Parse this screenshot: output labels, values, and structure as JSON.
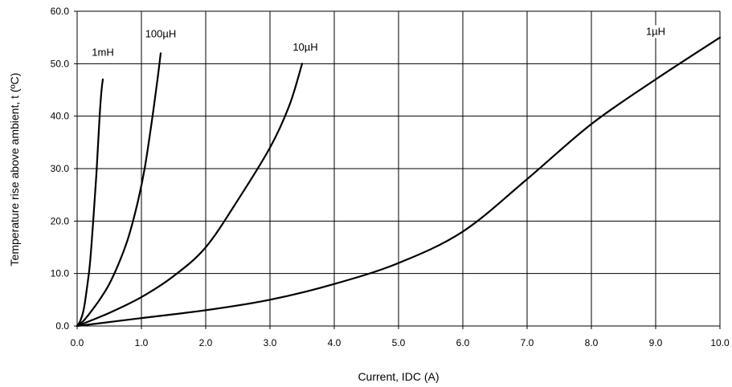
{
  "chart_data": {
    "type": "line",
    "title": "",
    "xlabel": "Current, IDC (A)",
    "ylabel": "Temperature rise above ambient, t (ºC)",
    "xlim": [
      0,
      10
    ],
    "ylim": [
      0,
      60
    ],
    "x_ticks": [
      "0.0",
      "1.0",
      "2.0",
      "3.0",
      "4.0",
      "5.0",
      "6.0",
      "7.0",
      "8.0",
      "9.0",
      "10.0"
    ],
    "y_ticks": [
      "0.0",
      "10.0",
      "20.0",
      "30.0",
      "40.0",
      "50.0",
      "60.0"
    ],
    "grid": true,
    "series": [
      {
        "name": "1mH",
        "x": [
          0.0,
          0.05,
          0.1,
          0.15,
          0.2,
          0.25,
          0.3,
          0.35,
          0.38,
          0.4
        ],
        "y": [
          0.0,
          1.0,
          3.0,
          7.0,
          12.0,
          20.0,
          29.0,
          40.0,
          45.0,
          47.0
        ]
      },
      {
        "name": "100µH",
        "x": [
          0.0,
          0.1,
          0.2,
          0.35,
          0.5,
          0.65,
          0.8,
          0.95,
          1.05,
          1.15,
          1.25,
          1.3
        ],
        "y": [
          0.0,
          1.0,
          2.5,
          5.0,
          8.0,
          12.0,
          17.0,
          24.0,
          30.0,
          38.0,
          47.0,
          52.0
        ]
      },
      {
        "name": "10µH",
        "x": [
          0.0,
          0.5,
          1.0,
          1.5,
          2.0,
          2.5,
          3.0,
          3.3,
          3.5
        ],
        "y": [
          0.0,
          2.5,
          5.5,
          9.5,
          15.0,
          24.0,
          34.0,
          42.0,
          50.0
        ]
      },
      {
        "name": "1µH",
        "x": [
          0.0,
          1.0,
          2.0,
          3.0,
          4.0,
          5.0,
          6.0,
          7.0,
          8.0,
          9.0,
          10.0
        ],
        "y": [
          0.0,
          1.5,
          3.0,
          5.0,
          8.0,
          12.0,
          18.0,
          28.0,
          38.5,
          47.0,
          55.0
        ]
      }
    ],
    "label_positions": {
      "1mH": [
        0.4,
        51.5
      ],
      "100µH": [
        1.3,
        55.0
      ],
      "10µH": [
        3.55,
        52.5
      ],
      "1µH": [
        9.0,
        55.5
      ]
    }
  }
}
